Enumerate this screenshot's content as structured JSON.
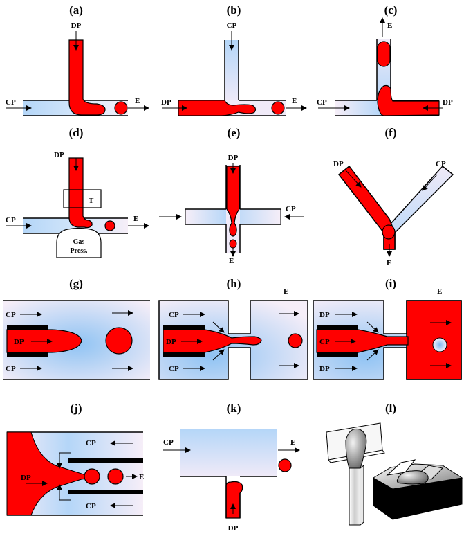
{
  "panels": {
    "a": {
      "tag": "(a)",
      "dp": "DP",
      "cp": "CP",
      "e": "E"
    },
    "b": {
      "tag": "(b)",
      "cp": "CP",
      "dp": "DP",
      "e": "E"
    },
    "c": {
      "tag": "(c)",
      "e": "E",
      "cp": "CP",
      "dp": "DP"
    },
    "d": {
      "tag": "(d)",
      "dp": "DP",
      "t": "T",
      "cp": "CP",
      "e": "E",
      "gas1": "Gas",
      "gas2": "Press."
    },
    "e": {
      "tag": "(e)",
      "dp": "DP",
      "cp": "CP",
      "e": "E"
    },
    "f": {
      "tag": "(f)",
      "dp": "DP",
      "cp": "CP",
      "e": "E"
    },
    "g": {
      "tag": "(g)",
      "cp1": "CP",
      "dp": "DP",
      "cp2": "CP"
    },
    "h": {
      "tag": "(h)",
      "e": "E",
      "cp1": "CP",
      "dp": "DP",
      "cp2": "CP"
    },
    "i": {
      "tag": "(i)",
      "e": "E",
      "dp1": "DP",
      "cp": "CP",
      "dp2": "DP"
    },
    "j": {
      "tag": "(j)",
      "cp1": "CP",
      "dp": "DP",
      "e": "E",
      "cp2": "CP"
    },
    "k": {
      "tag": "(k)",
      "cp": "CP",
      "e": "E",
      "dp": "DP"
    },
    "l": {
      "tag": "(l)"
    }
  },
  "colors": {
    "dispersed": "#ff0000",
    "continuous": "#b8d8f8",
    "wall": "#000000"
  }
}
